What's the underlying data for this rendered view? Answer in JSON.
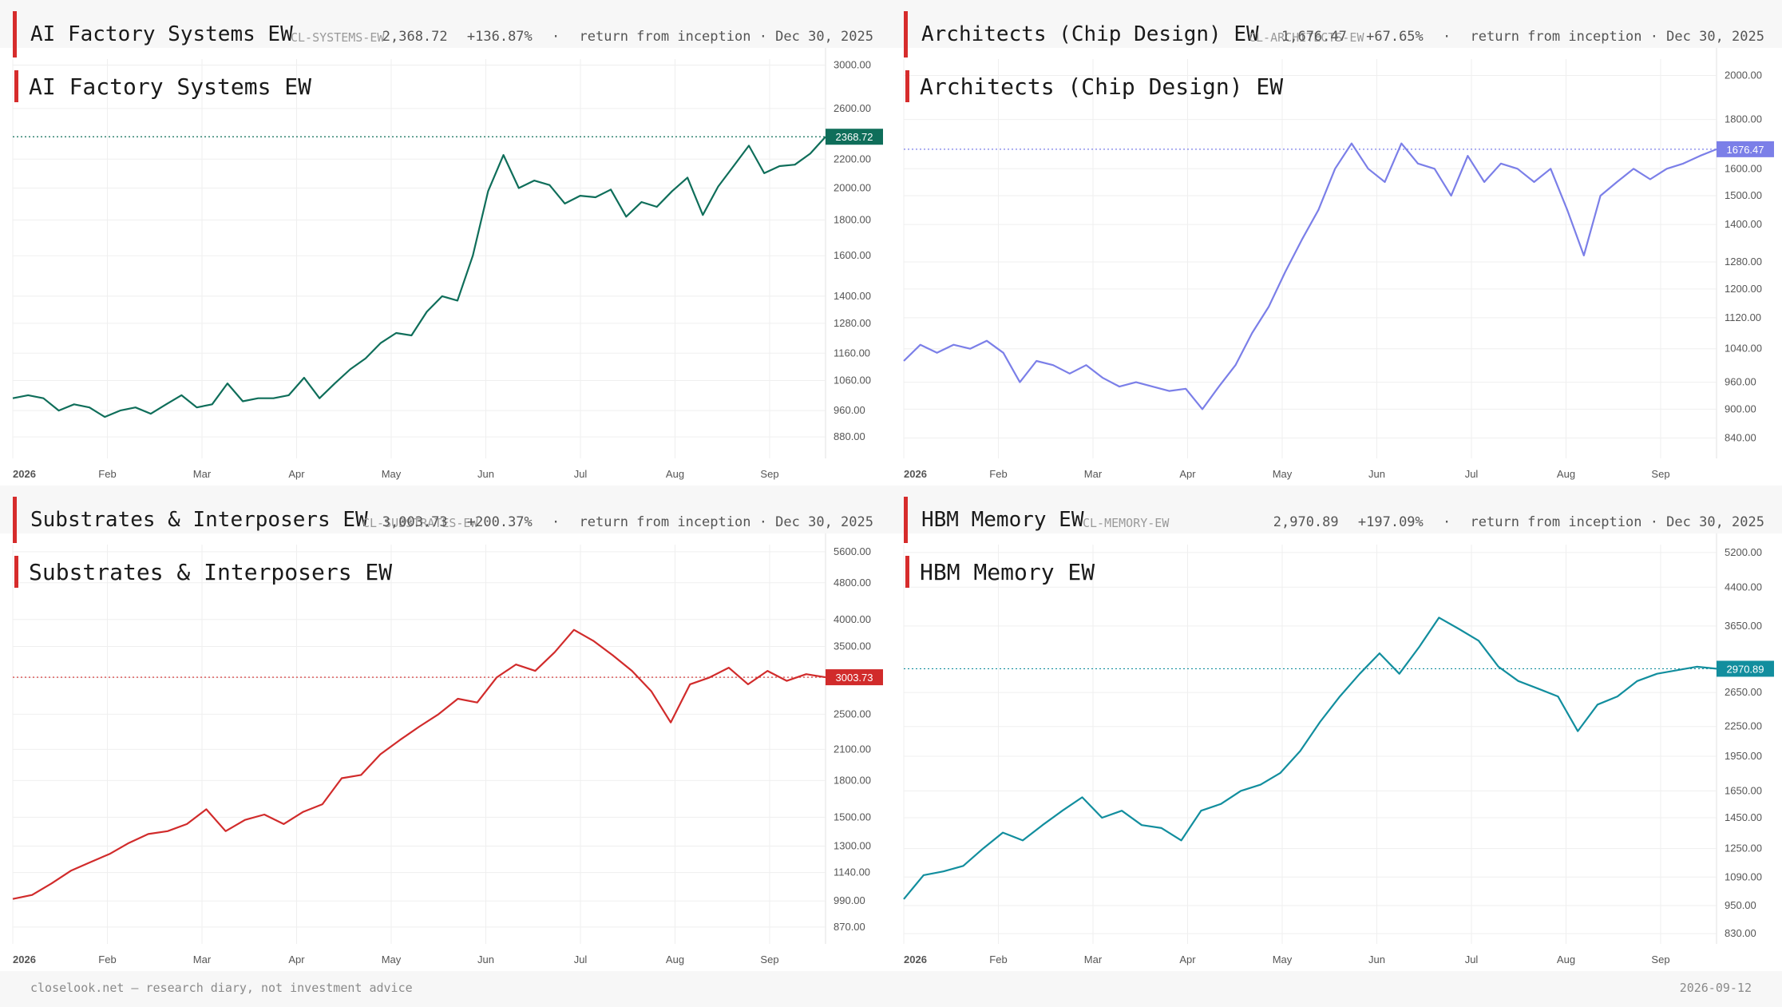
{
  "footer": {
    "left": "closelook.net — research diary, not investment advice",
    "right": "2026-09-12"
  },
  "months": [
    "2026",
    "Feb",
    "Mar",
    "Apr",
    "May",
    "Jun",
    "Jul",
    "Aug",
    "Sep"
  ],
  "panels": [
    {
      "title": "AI Factory Systems EW",
      "ticker": "CL-SYSTEMS-EW",
      "value": "2,368.72",
      "change": "+136.87%",
      "sep": "·",
      "note": "return from inception · Dec 30, 2025",
      "last_label": "2368.72",
      "color": "#0f6e5a"
    },
    {
      "title": "Architects (Chip Design) EW",
      "ticker": "CL-ARCHITECTS-EW",
      "value": "1,676.47",
      "change": "+67.65%",
      "sep": "·",
      "note": "return from inception · Dec 30, 2025",
      "last_label": "1676.47",
      "color": "#7b7fe8"
    },
    {
      "title": "Substrates & Interposers EW",
      "ticker": "CL-SUBSTRATES-EW",
      "value": "3,003.73",
      "change": "+200.37%",
      "sep": "·",
      "note": "return from inception · Dec 30, 2025",
      "last_label": "3003.73",
      "color": "#d12b2b"
    },
    {
      "title": "HBM Memory EW",
      "ticker": "CL-MEMORY-EW",
      "value": "2,970.89",
      "change": "+197.09%",
      "sep": "·",
      "note": "return from inception · Dec 30, 2025",
      "last_label": "2970.89",
      "color": "#128e9e"
    }
  ],
  "chart_data": [
    {
      "type": "line",
      "title": "AI Factory Systems EW",
      "scale": "log",
      "color": "#0f6e5a",
      "grid": true,
      "x_labels": [
        "2026",
        "Feb",
        "Mar",
        "Apr",
        "May",
        "Jun",
        "Jul",
        "Aug",
        "Sep"
      ],
      "yticks": [
        880,
        960,
        1060,
        1160,
        1280,
        1400,
        1600,
        1800,
        2000,
        2200,
        2600,
        3000
      ],
      "ylim": [
        820,
        3060
      ],
      "last": 2368.72,
      "values": [
        1000,
        1010,
        1000,
        960,
        980,
        970,
        940,
        960,
        970,
        950,
        980,
        1010,
        970,
        980,
        1050,
        990,
        1000,
        1000,
        1010,
        1070,
        1000,
        1050,
        1100,
        1140,
        1200,
        1240,
        1230,
        1330,
        1400,
        1380,
        1600,
        1980,
        2230,
        2000,
        2050,
        2020,
        1900,
        1950,
        1940,
        1990,
        1820,
        1910,
        1880,
        1980,
        2070,
        1830,
        2010,
        2150,
        2300,
        2100,
        2150,
        2160,
        2240,
        2368.72
      ]
    },
    {
      "type": "line",
      "title": "Architects (Chip Design) EW",
      "scale": "log",
      "color": "#7b7fe8",
      "grid": true,
      "x_labels": [
        "2026",
        "Feb",
        "Mar",
        "Apr",
        "May",
        "Jun",
        "Jul",
        "Aug",
        "Sep"
      ],
      "yticks": [
        840,
        900,
        960,
        1040,
        1120,
        1200,
        1280,
        1400,
        1500,
        1600,
        1800,
        2000
      ],
      "ylim": [
        800,
        2080
      ],
      "last": 1676.47,
      "values": [
        1010,
        1050,
        1030,
        1050,
        1040,
        1060,
        1030,
        960,
        1010,
        1000,
        980,
        1000,
        970,
        950,
        960,
        950,
        940,
        945,
        900,
        950,
        1000,
        1080,
        1150,
        1250,
        1350,
        1450,
        1600,
        1700,
        1600,
        1550,
        1700,
        1620,
        1600,
        1500,
        1650,
        1550,
        1620,
        1600,
        1550,
        1600,
        1450,
        1300,
        1500,
        1550,
        1600,
        1560,
        1600,
        1620,
        1650,
        1676.47
      ]
    },
    {
      "type": "line",
      "title": "Substrates & Interposers EW",
      "scale": "log",
      "color": "#d12b2b",
      "grid": true,
      "x_labels": [
        "2026",
        "Feb",
        "Mar",
        "Apr",
        "May",
        "Jun",
        "Jul",
        "Aug",
        "Sep"
      ],
      "yticks": [
        870,
        990,
        1140,
        1300,
        1500,
        1800,
        2100,
        2500,
        3000,
        3500,
        4000,
        4800,
        5600
      ],
      "ylim": [
        800,
        5800
      ],
      "last": 3003.73,
      "values": [
        1000,
        1020,
        1080,
        1150,
        1200,
        1250,
        1320,
        1380,
        1400,
        1450,
        1560,
        1400,
        1480,
        1520,
        1450,
        1540,
        1600,
        1820,
        1850,
        2050,
        2200,
        2350,
        2500,
        2700,
        2650,
        3000,
        3200,
        3100,
        3400,
        3800,
        3600,
        3350,
        3100,
        2800,
        2400,
        2900,
        3000,
        3150,
        2900,
        3100,
        2950,
        3050,
        3003.73
      ]
    },
    {
      "type": "line",
      "title": "HBM Memory EW",
      "scale": "log",
      "color": "#128e9e",
      "grid": true,
      "x_labels": [
        "2026",
        "Feb",
        "Mar",
        "Apr",
        "May",
        "Jun",
        "Jul",
        "Aug",
        "Sep"
      ],
      "yticks": [
        830,
        950,
        1090,
        1250,
        1450,
        1650,
        1950,
        2250,
        2650,
        3650,
        4400,
        5200
      ],
      "ylim": [
        790,
        5400
      ],
      "last": 2970.89,
      "values": [
        980,
        1100,
        1120,
        1150,
        1250,
        1350,
        1300,
        1400,
        1500,
        1600,
        1450,
        1500,
        1400,
        1380,
        1300,
        1500,
        1550,
        1650,
        1700,
        1800,
        2000,
        2300,
        2600,
        2900,
        3200,
        2900,
        3300,
        3800,
        3600,
        3400,
        3000,
        2800,
        2700,
        2600,
        2200,
        2500,
        2600,
        2800,
        2900,
        2950,
        3000,
        2970.89
      ]
    }
  ]
}
